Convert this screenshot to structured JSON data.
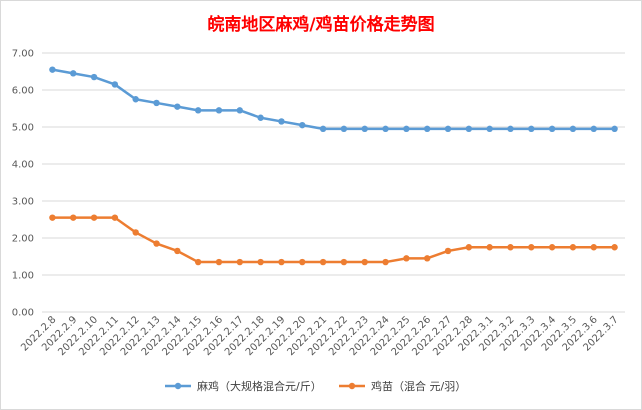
{
  "chart_data": {
    "type": "line",
    "title": "皖南地区麻鸡/鸡苗价格走势图",
    "xlabel": "",
    "ylabel": "",
    "ylim": [
      0,
      7
    ],
    "yticks": [
      "0.00",
      "1.00",
      "2.00",
      "3.00",
      "4.00",
      "5.00",
      "6.00",
      "7.00"
    ],
    "grid": true,
    "legend": "bottom",
    "categories": [
      "2022.2.8",
      "2022.2.9",
      "2022.2.10",
      "2022.2.11",
      "2022.2.12",
      "2022.2.13",
      "2022.2.14",
      "2022.2.15",
      "2022.2.16",
      "2022.2.17",
      "2022.2.18",
      "2022.2.19",
      "2022.2.20",
      "2022.2.21",
      "2022.2.22",
      "2022.2.23",
      "2022.2.24",
      "2022.2.25",
      "2022.2.26",
      "2022.2.27",
      "2022.2.28",
      "2022.3.1",
      "2022.3.2",
      "2022.3.3",
      "2022.3.4",
      "2022.3.5",
      "2022.3.6",
      "2022.3.7"
    ],
    "series": [
      {
        "name": "麻鸡（大规格混合元/斤）",
        "color": "#5b9bd5",
        "values": [
          6.55,
          6.45,
          6.35,
          6.15,
          5.75,
          5.65,
          5.55,
          5.45,
          5.45,
          5.45,
          5.25,
          5.15,
          5.05,
          4.95,
          4.95,
          4.95,
          4.95,
          4.95,
          4.95,
          4.95,
          4.95,
          4.95,
          4.95,
          4.95,
          4.95,
          4.95,
          4.95,
          4.95
        ]
      },
      {
        "name": "鸡苗（混合 元/羽）",
        "color": "#ed7d31",
        "values": [
          2.55,
          2.55,
          2.55,
          2.55,
          2.15,
          1.85,
          1.65,
          1.35,
          1.35,
          1.35,
          1.35,
          1.35,
          1.35,
          1.35,
          1.35,
          1.35,
          1.35,
          1.45,
          1.45,
          1.65,
          1.75,
          1.75,
          1.75,
          1.75,
          1.75,
          1.75,
          1.75,
          1.75
        ]
      }
    ]
  }
}
